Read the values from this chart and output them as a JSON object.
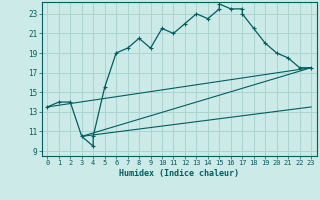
{
  "xlabel": "Humidex (Indice chaleur)",
  "bg_color": "#cceae7",
  "grid_color": "#aad4d0",
  "line_color": "#005f5f",
  "xlim": [
    -0.5,
    23.5
  ],
  "ylim": [
    8.5,
    24.2
  ],
  "xticks": [
    0,
    1,
    2,
    3,
    4,
    5,
    6,
    7,
    8,
    9,
    10,
    11,
    12,
    13,
    14,
    15,
    16,
    17,
    18,
    19,
    20,
    21,
    22,
    23
  ],
  "yticks": [
    9,
    11,
    13,
    15,
    17,
    19,
    21,
    23
  ],
  "main_x": [
    0,
    1,
    2,
    3,
    4,
    4,
    5,
    6,
    7,
    8,
    9,
    10,
    11,
    12,
    13,
    14,
    15,
    15,
    16,
    17,
    17,
    18,
    19,
    20,
    21,
    22,
    23
  ],
  "main_y": [
    13.5,
    14.0,
    14.0,
    10.5,
    9.5,
    10.5,
    15.5,
    19.0,
    19.5,
    20.5,
    19.5,
    21.5,
    21.0,
    22.0,
    23.0,
    22.5,
    23.5,
    24.0,
    23.5,
    23.5,
    23.0,
    21.5,
    20.0,
    19.0,
    18.5,
    17.5,
    17.5
  ],
  "line1_x": [
    0,
    23
  ],
  "line1_y": [
    13.5,
    17.5
  ],
  "line2_x": [
    3,
    23
  ],
  "line2_y": [
    10.5,
    17.5
  ],
  "line3_x": [
    3,
    23
  ],
  "line3_y": [
    10.5,
    13.5
  ]
}
